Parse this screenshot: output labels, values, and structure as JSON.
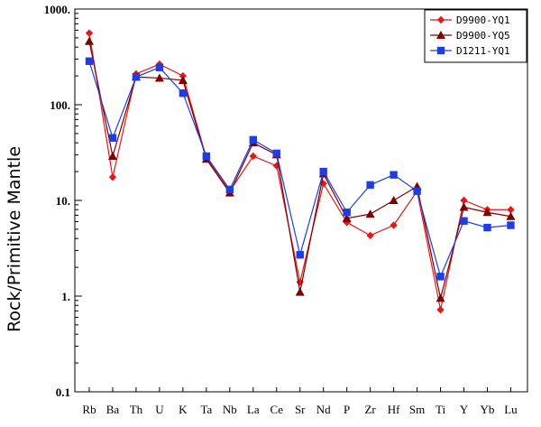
{
  "chart_data": {
    "type": "line",
    "title": "",
    "xlabel": "",
    "ylabel": "Rock/Primitive Mantle",
    "yscale": "log",
    "ylim": [
      0.1,
      1000
    ],
    "yticks": [
      {
        "value": 0.1,
        "label": "0.1"
      },
      {
        "value": 1,
        "label": "1."
      },
      {
        "value": 10,
        "label": "10."
      },
      {
        "value": 100,
        "label": "100."
      },
      {
        "value": 1000,
        "label": "1000."
      }
    ],
    "categories": [
      "Rb",
      "Ba",
      "Th",
      "U",
      "K",
      "Ta",
      "Nb",
      "La",
      "Ce",
      "Sr",
      "Nd",
      "P",
      "Zr",
      "Hf",
      "Sm",
      "Ti",
      "Y",
      "Yb",
      "Lu"
    ],
    "legend_position": "top-right",
    "grid": false,
    "series": [
      {
        "name": "D9900-YQ1",
        "color": "#e0191a",
        "marker": "diamond",
        "values": [
          560,
          17.5,
          210,
          265,
          200,
          28,
          12.5,
          29,
          23,
          1.4,
          15,
          5.9,
          4.3,
          5.5,
          12.5,
          0.72,
          10,
          8,
          8
        ]
      },
      {
        "name": "D9900-YQ5",
        "color": "#7b0000",
        "marker": "triangle",
        "values": [
          460,
          29,
          195,
          190,
          180,
          27,
          12,
          40,
          30,
          1.1,
          19,
          6.5,
          7.2,
          10,
          14,
          0.95,
          8.5,
          7.5,
          6.8
        ]
      },
      {
        "name": "D1211-YQ1",
        "color": "#1f3de0",
        "marker": "square",
        "values": [
          285,
          45,
          195,
          245,
          132,
          29,
          13,
          43,
          31,
          2.7,
          20,
          7.5,
          14.5,
          18.5,
          12.5,
          1.6,
          6.1,
          5.2,
          5.5
        ]
      }
    ]
  }
}
